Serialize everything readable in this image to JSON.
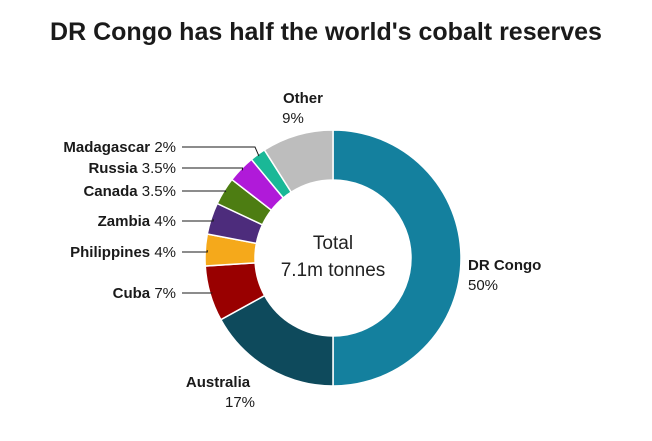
{
  "chart_data": {
    "type": "pie",
    "title": "DR Congo has half the world's cobalt reserves",
    "center_label_line1": "Total",
    "center_label_line2": "7.1m tonnes",
    "slices": [
      {
        "name": "DR Congo",
        "value": 50,
        "value_label": "50%",
        "color": "#14809e"
      },
      {
        "name": "Australia",
        "value": 17,
        "value_label": "17%",
        "color": "#0e4a5c"
      },
      {
        "name": "Cuba",
        "value": 7,
        "value_label": "7%",
        "color": "#990000"
      },
      {
        "name": "Philippines",
        "value": 4,
        "value_label": "4%",
        "color": "#f5a91b"
      },
      {
        "name": "Zambia",
        "value": 4,
        "value_label": "4%",
        "color": "#4d2c7c"
      },
      {
        "name": "Canada",
        "value": 3.5,
        "value_label": "3.5%",
        "color": "#4d7d12"
      },
      {
        "name": "Russia",
        "value": 3.5,
        "value_label": "3.5%",
        "color": "#b01ad9"
      },
      {
        "name": "Madagascar",
        "value": 2,
        "value_label": "2%",
        "color": "#1ab897"
      },
      {
        "name": "Other",
        "value": 9,
        "value_label": "9%",
        "color": "#bdbdbd"
      }
    ]
  }
}
